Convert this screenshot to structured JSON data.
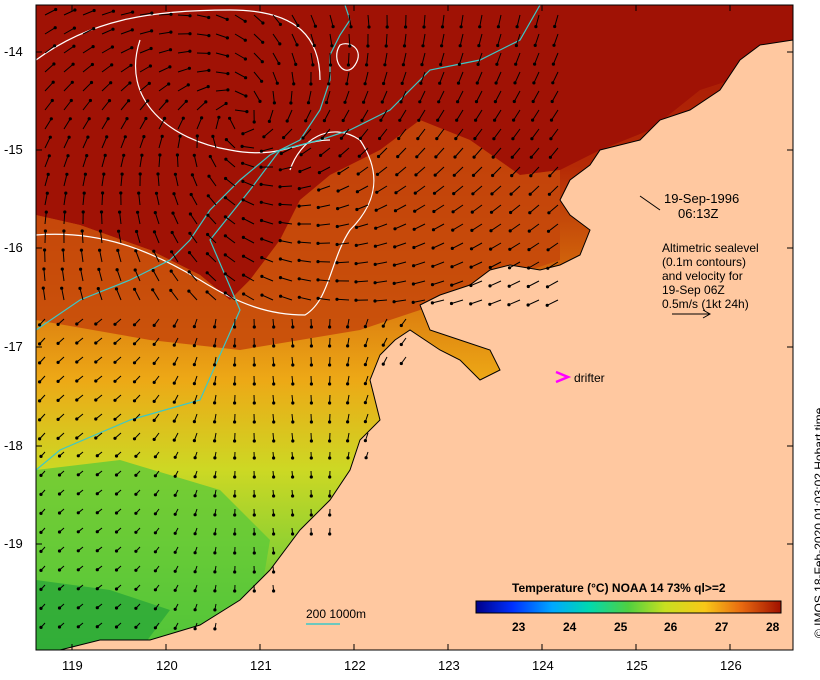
{
  "map": {
    "y_ticks": [
      "-14",
      "-15",
      "-16",
      "-17",
      "-18",
      "-19"
    ],
    "x_ticks": [
      "119",
      "120",
      "121",
      "122",
      "123",
      "124",
      "125",
      "126"
    ],
    "date_line1": "19-Sep-1996",
    "date_line2": "06:13Z",
    "legend_lines": [
      "Altimetric sealevel",
      "(0.1m contours)",
      "and velocity for",
      "19-Sep 06Z",
      "0.5m/s (1kt 24h)"
    ],
    "drifter_label": "drifter",
    "isobath_label": "200  1000m",
    "credit": "© IMOS 18-Feb-2020 01:03:02 Hobart time",
    "colorbar_title": "Temperature (°C) NOAA 14 73% ql>=2",
    "colorbar_ticks": [
      "23",
      "24",
      "25",
      "26",
      "27",
      "28"
    ],
    "colors": {
      "land": "#ffc8a0",
      "drifter": "#ff00ff",
      "isobath": "#3cc8c8",
      "contour": "#ffffff"
    }
  }
}
